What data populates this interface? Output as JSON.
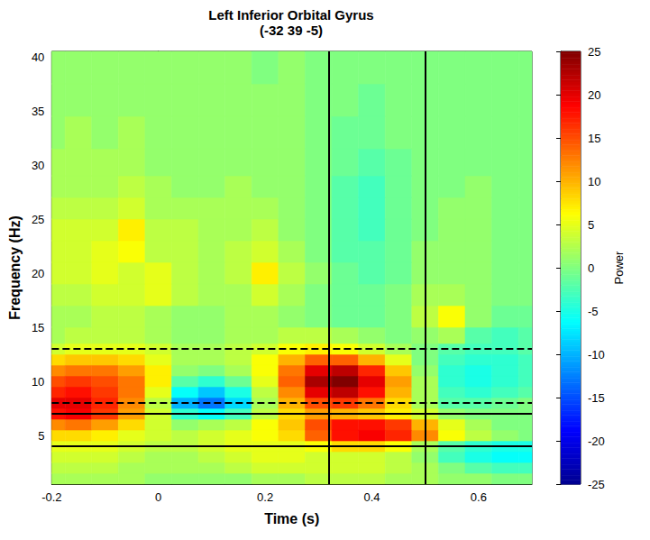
{
  "chart_data": {
    "type": "heatmap",
    "title": "Left Inferior Orbital Gyrus",
    "subtitle": "(-32 39 -5)",
    "x_label": "Time (s)",
    "y_label": "Frequency (Hz)",
    "xlim": [
      -0.2,
      0.7
    ],
    "xticks": [
      -0.2,
      0,
      0.2,
      0.4,
      0.6
    ],
    "ylim": [
      0.5,
      40.5
    ],
    "yticks": [
      5,
      10,
      15,
      20,
      25,
      30,
      35,
      40
    ],
    "grid": false,
    "x": [
      -0.2,
      -0.15,
      -0.1,
      -0.05,
      0,
      0.05,
      0.1,
      0.15,
      0.2,
      0.25,
      0.3,
      0.35,
      0.4,
      0.45,
      0.5,
      0.55,
      0.6,
      0.65,
      0.7
    ],
    "y": [
      1,
      2,
      3,
      4,
      5,
      6,
      7,
      8,
      9,
      10,
      11,
      12,
      13,
      14,
      16,
      18,
      20,
      22,
      24,
      26,
      28,
      30,
      33,
      36,
      39
    ],
    "cells": [
      [
        2,
        2,
        2,
        2,
        1,
        1,
        1,
        1,
        2,
        2,
        3,
        3,
        3,
        2,
        2,
        1,
        1,
        0,
        0
      ],
      [
        3,
        3,
        3,
        2,
        2,
        2,
        2,
        3,
        4,
        4,
        4,
        4,
        4,
        3,
        2,
        0,
        -2,
        -3,
        -3
      ],
      [
        4,
        4,
        4,
        3,
        2,
        2,
        3,
        4,
        5,
        5,
        4,
        4,
        4,
        3,
        1,
        -3,
        -5,
        -6,
        -6
      ],
      [
        5,
        5,
        5,
        4,
        3,
        3,
        4,
        5,
        5,
        5,
        6,
        8,
        8,
        6,
        2,
        -2,
        -4,
        -5,
        -5
      ],
      [
        8,
        8,
        7,
        5,
        4,
        3,
        4,
        5,
        6,
        8,
        14,
        18,
        19,
        17,
        12,
        6,
        3,
        1,
        0
      ],
      [
        12,
        13,
        11,
        8,
        4,
        1,
        2,
        3,
        6,
        9,
        15,
        18,
        18,
        16,
        10,
        5,
        2,
        0,
        0
      ],
      [
        18,
        19,
        16,
        11,
        4,
        -4,
        -6,
        -3,
        3,
        8,
        11,
        10,
        9,
        7,
        4,
        1,
        0,
        0,
        0
      ],
      [
        20,
        20,
        17,
        12,
        3,
        -10,
        -13,
        -8,
        2,
        10,
        15,
        16,
        13,
        8,
        2,
        -2,
        -2,
        -1,
        0
      ],
      [
        17,
        18,
        16,
        13,
        5,
        -6,
        -9,
        -5,
        3,
        12,
        20,
        22,
        18,
        10,
        2,
        -3,
        -4,
        -3,
        -2
      ],
      [
        15,
        16,
        15,
        13,
        7,
        -2,
        -4,
        -1,
        5,
        14,
        23,
        25,
        20,
        11,
        2,
        -4,
        -5,
        -4,
        -3
      ],
      [
        12,
        13,
        13,
        11,
        7,
        1,
        0,
        2,
        6,
        13,
        20,
        22,
        17,
        9,
        1,
        -4,
        -5,
        -4,
        -3
      ],
      [
        8,
        9,
        9,
        8,
        5,
        2,
        2,
        3,
        6,
        10,
        14,
        14,
        10,
        5,
        0,
        -3,
        -4,
        -4,
        -3
      ],
      [
        4,
        5,
        5,
        5,
        4,
        2,
        2,
        3,
        4,
        6,
        7,
        6,
        4,
        2,
        0,
        -2,
        -3,
        -3,
        -2
      ],
      [
        2,
        3,
        3,
        3,
        2,
        1,
        1,
        2,
        2,
        3,
        3,
        2,
        1,
        0,
        1,
        2,
        -2,
        -3,
        -2
      ],
      [
        2,
        2,
        3,
        3,
        2,
        1,
        1,
        2,
        2,
        1,
        0,
        -1,
        -1,
        0,
        3,
        6,
        1,
        -1,
        -1
      ],
      [
        3,
        3,
        4,
        4,
        5,
        3,
        2,
        2,
        4,
        2,
        0,
        -1,
        -1,
        0,
        2,
        2,
        1,
        0,
        0
      ],
      [
        4,
        4,
        5,
        4,
        5,
        3,
        2,
        3,
        7,
        3,
        1,
        -1,
        -2,
        -1,
        1,
        1,
        1,
        0,
        0
      ],
      [
        4,
        4,
        5,
        6,
        3,
        3,
        2,
        3,
        4,
        2,
        0,
        -2,
        -2,
        -1,
        1,
        1,
        1,
        0,
        0
      ],
      [
        4,
        4,
        4,
        7,
        3,
        3,
        2,
        2,
        3,
        1,
        0,
        -2,
        -3,
        -1,
        0,
        1,
        1,
        0,
        0
      ],
      [
        3,
        3,
        3,
        4,
        2,
        2,
        2,
        2,
        2,
        1,
        0,
        -2,
        -3,
        -1,
        0,
        1,
        1,
        0,
        0
      ],
      [
        2,
        2,
        2,
        3,
        2,
        1,
        1,
        2,
        1,
        1,
        0,
        -2,
        -3,
        -1,
        0,
        0,
        1,
        0,
        0
      ],
      [
        2,
        2,
        2,
        2,
        1,
        1,
        1,
        1,
        1,
        1,
        0,
        -1,
        -2,
        -1,
        0,
        0,
        0,
        0,
        0
      ],
      [
        1,
        2,
        1,
        2,
        1,
        1,
        1,
        1,
        1,
        1,
        0,
        -1,
        -1,
        0,
        0,
        0,
        0,
        0,
        0
      ],
      [
        1,
        1,
        1,
        1,
        1,
        1,
        1,
        1,
        1,
        1,
        0,
        0,
        -1,
        0,
        0,
        0,
        0,
        0,
        0
      ],
      [
        1,
        1,
        1,
        1,
        1,
        1,
        1,
        1,
        0,
        1,
        0,
        0,
        0,
        0,
        0,
        0,
        0,
        0,
        0
      ]
    ],
    "colorbar": {
      "label": "Power",
      "range": [
        -25,
        25
      ],
      "ticks": [
        -25,
        -20,
        -15,
        -10,
        -5,
        0,
        5,
        10,
        15,
        20,
        25
      ]
    },
    "lines": [
      {
        "axis": "x",
        "value": 0.32,
        "line_style": "solid"
      },
      {
        "axis": "x",
        "value": 0.5,
        "line_style": "solid"
      },
      {
        "axis": "y",
        "value": 4,
        "line_style": "solid"
      },
      {
        "axis": "y",
        "value": 7,
        "line_style": "solid"
      },
      {
        "axis": "y",
        "value": 8,
        "line_style": "dashed"
      },
      {
        "axis": "y",
        "value": 13,
        "line_style": "dashed"
      }
    ]
  }
}
